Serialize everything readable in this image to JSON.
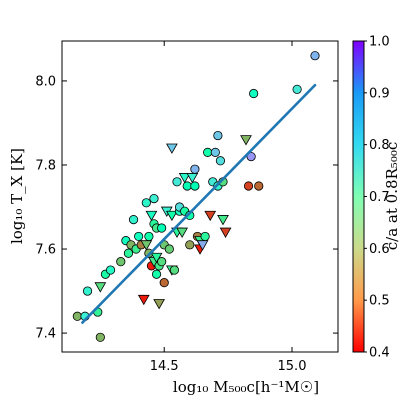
{
  "chart_data": {
    "type": "scatter",
    "xlabel": "log₁₀ M₅₀₀c[h⁻¹M☉]",
    "ylabel": "log₁₀ T_X [K]",
    "colorbar_label": "c/a at 0.8R₅₀₀c",
    "xlim": [
      14.1,
      15.18
    ],
    "ylim": [
      7.355,
      8.095
    ],
    "x_ticks": [
      14.5,
      15.0
    ],
    "x_tick_labels": [
      "14.5",
      "15.0"
    ],
    "y_ticks": [
      7.4,
      7.6,
      7.8,
      8.0
    ],
    "y_tick_labels": [
      "7.4",
      "7.6",
      "7.8",
      "8.0"
    ],
    "colorbar": {
      "range": [
        0.4,
        1.0
      ],
      "ticks": [
        0.4,
        0.5,
        0.6,
        0.7,
        0.8,
        0.9,
        1.0
      ],
      "tick_labels": [
        "0.4",
        "0.5",
        "0.6",
        "0.7",
        "0.8",
        "0.9",
        "1.0"
      ],
      "colormap": "rainbow_r"
    },
    "fit_line": {
      "x": [
        14.18,
        15.09
      ],
      "y": [
        7.425,
        7.99
      ],
      "color": "#1f77b4"
    },
    "grid": false,
    "legend": "none",
    "points": [
      {
        "x": 14.16,
        "y": 7.44,
        "c": 0.55,
        "m": "circle"
      },
      {
        "x": 14.19,
        "y": 7.44,
        "c": 0.77,
        "m": "circle"
      },
      {
        "x": 14.2,
        "y": 7.5,
        "c": 0.76,
        "m": "circle"
      },
      {
        "x": 14.24,
        "y": 7.45,
        "c": 0.64,
        "m": "circle"
      },
      {
        "x": 14.25,
        "y": 7.39,
        "c": 0.55,
        "m": "circle"
      },
      {
        "x": 14.25,
        "y": 7.51,
        "c": 0.6,
        "m": "tri"
      },
      {
        "x": 14.27,
        "y": 7.54,
        "c": 0.67,
        "m": "circle"
      },
      {
        "x": 14.29,
        "y": 7.55,
        "c": 0.74,
        "m": "circle"
      },
      {
        "x": 14.33,
        "y": 7.57,
        "c": 0.57,
        "m": "circle"
      },
      {
        "x": 14.35,
        "y": 7.62,
        "c": 0.72,
        "m": "circle"
      },
      {
        "x": 14.36,
        "y": 7.59,
        "c": 0.65,
        "m": "circle"
      },
      {
        "x": 14.37,
        "y": 7.61,
        "c": 0.55,
        "m": "circle"
      },
      {
        "x": 14.38,
        "y": 7.67,
        "c": 0.76,
        "m": "circle"
      },
      {
        "x": 14.39,
        "y": 7.6,
        "c": 0.63,
        "m": "circle"
      },
      {
        "x": 14.4,
        "y": 7.63,
        "c": 0.72,
        "m": "circle"
      },
      {
        "x": 14.41,
        "y": 7.61,
        "c": 0.5,
        "m": "circle"
      },
      {
        "x": 14.42,
        "y": 7.48,
        "c": 0.42,
        "m": "tri"
      },
      {
        "x": 14.43,
        "y": 7.61,
        "c": 0.57,
        "m": "tri"
      },
      {
        "x": 14.43,
        "y": 7.71,
        "c": 0.75,
        "m": "circle"
      },
      {
        "x": 14.44,
        "y": 7.59,
        "c": 0.55,
        "m": "circle"
      },
      {
        "x": 14.44,
        "y": 7.63,
        "c": 0.68,
        "m": "circle"
      },
      {
        "x": 14.45,
        "y": 7.56,
        "c": 0.42,
        "m": "circle"
      },
      {
        "x": 14.45,
        "y": 7.68,
        "c": 0.73,
        "m": "tri"
      },
      {
        "x": 14.46,
        "y": 7.57,
        "c": 0.62,
        "m": "tri"
      },
      {
        "x": 14.46,
        "y": 7.66,
        "c": 0.65,
        "m": "circle"
      },
      {
        "x": 14.46,
        "y": 7.72,
        "c": 0.77,
        "m": "circle"
      },
      {
        "x": 14.47,
        "y": 7.54,
        "c": 0.68,
        "m": "circle"
      },
      {
        "x": 14.47,
        "y": 7.58,
        "c": 0.65,
        "m": "tri"
      },
      {
        "x": 14.47,
        "y": 7.65,
        "c": 0.62,
        "m": "circle"
      },
      {
        "x": 14.48,
        "y": 7.47,
        "c": 0.53,
        "m": "tri"
      },
      {
        "x": 14.48,
        "y": 7.56,
        "c": 0.62,
        "m": "circle"
      },
      {
        "x": 14.49,
        "y": 7.57,
        "c": 0.6,
        "m": "circle"
      },
      {
        "x": 14.49,
        "y": 7.65,
        "c": 0.7,
        "m": "circle"
      },
      {
        "x": 14.5,
        "y": 7.52,
        "c": 0.48,
        "m": "circle"
      },
      {
        "x": 14.5,
        "y": 7.61,
        "c": 0.57,
        "m": "circle"
      },
      {
        "x": 14.51,
        "y": 7.69,
        "c": 0.77,
        "m": "tri"
      },
      {
        "x": 14.52,
        "y": 7.6,
        "c": 0.58,
        "m": "circle"
      },
      {
        "x": 14.53,
        "y": 7.55,
        "c": 0.63,
        "m": "tri"
      },
      {
        "x": 14.53,
        "y": 7.68,
        "c": 0.68,
        "m": "tri"
      },
      {
        "x": 14.53,
        "y": 7.84,
        "c": 0.83,
        "m": "tri"
      },
      {
        "x": 14.54,
        "y": 7.55,
        "c": 0.6,
        "m": "circle"
      },
      {
        "x": 14.55,
        "y": 7.76,
        "c": 0.78,
        "m": "circle"
      },
      {
        "x": 14.55,
        "y": 7.64,
        "c": 0.65,
        "m": "tri"
      },
      {
        "x": 14.56,
        "y": 7.69,
        "c": 0.72,
        "m": "circle"
      },
      {
        "x": 14.56,
        "y": 7.7,
        "c": 0.8,
        "m": "circle"
      },
      {
        "x": 14.57,
        "y": 7.64,
        "c": 0.6,
        "m": "tri"
      },
      {
        "x": 14.58,
        "y": 7.77,
        "c": 0.75,
        "m": "tri"
      },
      {
        "x": 14.58,
        "y": 7.69,
        "c": 0.67,
        "m": "circle"
      },
      {
        "x": 14.59,
        "y": 7.75,
        "c": 0.7,
        "m": "circle"
      },
      {
        "x": 14.6,
        "y": 7.61,
        "c": 0.53,
        "m": "circle"
      },
      {
        "x": 14.6,
        "y": 7.68,
        "c": 0.68,
        "m": "circle"
      },
      {
        "x": 14.61,
        "y": 7.77,
        "c": 0.77,
        "m": "tri"
      },
      {
        "x": 14.62,
        "y": 7.79,
        "c": 0.85,
        "m": "circle"
      },
      {
        "x": 14.62,
        "y": 7.75,
        "c": 0.7,
        "m": "circle"
      },
      {
        "x": 14.63,
        "y": 7.63,
        "c": 0.5,
        "m": "circle"
      },
      {
        "x": 14.64,
        "y": 7.62,
        "c": 0.63,
        "m": "tri"
      },
      {
        "x": 14.64,
        "y": 7.6,
        "c": 0.42,
        "m": "tri"
      },
      {
        "x": 14.65,
        "y": 7.61,
        "c": 0.86,
        "m": "tri"
      },
      {
        "x": 14.66,
        "y": 7.63,
        "c": 0.65,
        "m": "circle"
      },
      {
        "x": 14.67,
        "y": 7.83,
        "c": 0.68,
        "m": "circle"
      },
      {
        "x": 14.68,
        "y": 7.68,
        "c": 0.45,
        "m": "tri"
      },
      {
        "x": 14.69,
        "y": 7.76,
        "c": 0.78,
        "m": "circle"
      },
      {
        "x": 14.7,
        "y": 7.83,
        "c": 0.83,
        "m": "circle"
      },
      {
        "x": 14.71,
        "y": 7.87,
        "c": 0.83,
        "m": "circle"
      },
      {
        "x": 14.71,
        "y": 7.75,
        "c": 0.76,
        "m": "circle"
      },
      {
        "x": 14.72,
        "y": 7.81,
        "c": 0.8,
        "m": "circle"
      },
      {
        "x": 14.73,
        "y": 7.67,
        "c": 0.62,
        "m": "tri"
      },
      {
        "x": 14.73,
        "y": 7.76,
        "c": 0.6,
        "m": "circle"
      },
      {
        "x": 14.74,
        "y": 7.64,
        "c": 0.45,
        "m": "tri"
      },
      {
        "x": 14.82,
        "y": 7.86,
        "c": 0.55,
        "m": "tri"
      },
      {
        "x": 14.83,
        "y": 7.75,
        "c": 0.45,
        "m": "circle"
      },
      {
        "x": 14.84,
        "y": 7.82,
        "c": 0.88,
        "m": "circle"
      },
      {
        "x": 14.85,
        "y": 7.97,
        "c": 0.72,
        "m": "circle"
      },
      {
        "x": 14.87,
        "y": 7.75,
        "c": 0.48,
        "m": "circle"
      },
      {
        "x": 15.02,
        "y": 7.98,
        "c": 0.78,
        "m": "circle"
      },
      {
        "x": 15.09,
        "y": 8.06,
        "c": 0.85,
        "m": "circle"
      }
    ]
  }
}
